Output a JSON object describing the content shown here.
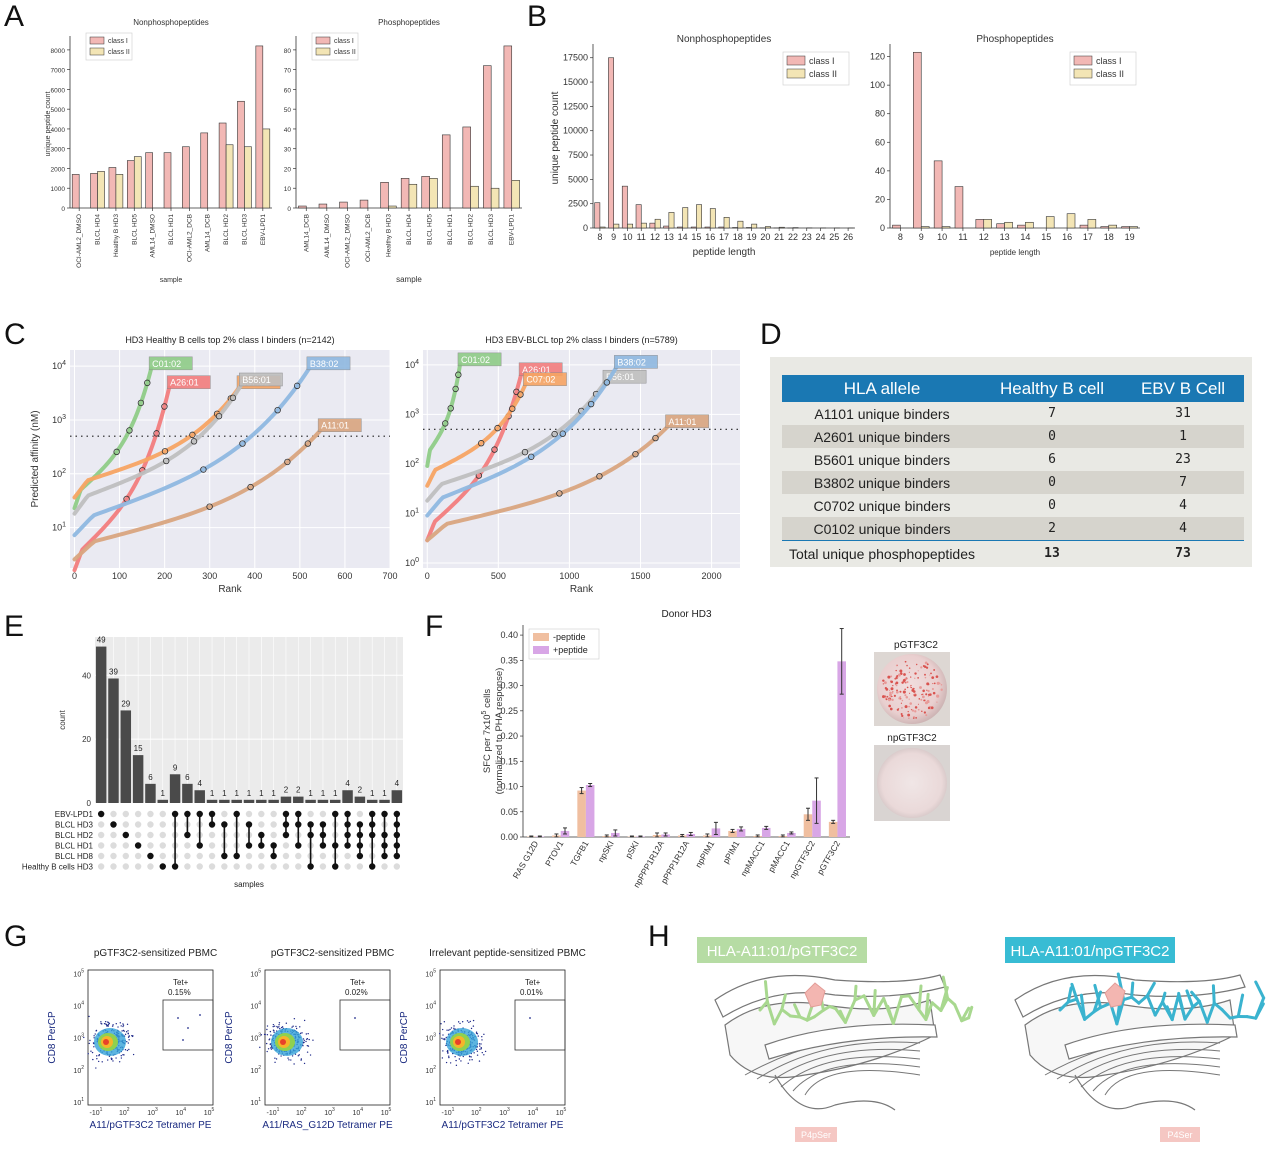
{
  "panels": [
    "A",
    "B",
    "C",
    "D",
    "E",
    "F",
    "G",
    "H"
  ],
  "colors": {
    "class_i": "#f2b8b5",
    "class_ii": "#f3e5b5",
    "bar_edge": "#333333",
    "c0102": "#8fcc87",
    "a2601": "#f27d7d",
    "c0702": "#f7a463",
    "b5601": "#bfbfbf",
    "b3802": "#8fb8e0",
    "a1101": "#d9a57f",
    "gridbg": "#eaeaf2",
    "upset_bar": "#4a4a4a",
    "neg": "#f0bfa0",
    "pos": "#d8a6e6",
    "table_header": "#1a78b3",
    "green_label": "#b6dca4",
    "cyan_label": "#38bcd4"
  },
  "chart_data": [
    {
      "id": "A1",
      "type": "bar",
      "title": "Nonphosphopeptides",
      "xlabel": "sample",
      "ylabel": "unique peptide count",
      "ylim": [
        0,
        8500
      ],
      "yticks": [
        0,
        1000,
        2000,
        3000,
        4000,
        5000,
        6000,
        7000,
        8000
      ],
      "categories": [
        "OCI-AML2_DMSO",
        "BLCL HD4",
        "Healthy B HD3",
        "BLCL HD5",
        "AML14_DMSO",
        "BLCL HD1",
        "OCI-AML2_DCB",
        "AML14_DCB",
        "BLCL HD2",
        "BLCL HD3",
        "EBV-LPD1"
      ],
      "series": [
        {
          "name": "class I",
          "values": [
            1700,
            1750,
            2050,
            2400,
            2800,
            2800,
            3100,
            3800,
            4300,
            5400,
            8200
          ]
        },
        {
          "name": "class II",
          "values": [
            null,
            1850,
            1700,
            2600,
            null,
            null,
            null,
            null,
            3200,
            3100,
            4000
          ]
        }
      ],
      "legend": "top-left"
    },
    {
      "id": "A2",
      "type": "bar",
      "title": "Phosphopeptides",
      "xlabel": "sample",
      "ylabel": "",
      "ylim": [
        0,
        85
      ],
      "yticks": [
        0,
        10,
        20,
        30,
        40,
        50,
        60,
        70,
        80
      ],
      "categories": [
        "AML14_DCB",
        "AML14_DMSO",
        "OCI-AML2_DMSO",
        "OCI-AML2_DCB",
        "Healthy B HD3",
        "BLCL HD4",
        "BLCL HD5",
        "BLCL HD1",
        "BLCL HD2",
        "BLCL HD3",
        "EBV-LPD1"
      ],
      "series": [
        {
          "name": "class I",
          "values": [
            1,
            2,
            3,
            4,
            13,
            15,
            16,
            37,
            41,
            72,
            82
          ]
        },
        {
          "name": "class II",
          "values": [
            null,
            null,
            null,
            null,
            1,
            12,
            15,
            null,
            11,
            10,
            14
          ]
        }
      ],
      "legend": "top-left"
    },
    {
      "id": "B1",
      "type": "bar",
      "title": "Nonphosphopeptides",
      "xlabel": "peptide length",
      "ylabel": "unique peptide count",
      "ylim": [
        0,
        18500
      ],
      "yticks": [
        0,
        2500,
        5000,
        7500,
        10000,
        12500,
        15000,
        17500
      ],
      "categories": [
        "8",
        "9",
        "10",
        "11",
        "12",
        "13",
        "14",
        "15",
        "16",
        "17",
        "18",
        "19",
        "20",
        "21",
        "22",
        "23",
        "24",
        "25",
        "26"
      ],
      "series": [
        {
          "name": "class I",
          "values": [
            2600,
            17500,
            4300,
            2400,
            500,
            200,
            100,
            100,
            100,
            100,
            50,
            50,
            20,
            10,
            5,
            0,
            0,
            0,
            0
          ]
        },
        {
          "name": "class II",
          "values": [
            100,
            400,
            400,
            500,
            900,
            1600,
            2100,
            2400,
            2000,
            1100,
            700,
            400,
            150,
            80,
            40,
            20,
            10,
            5,
            5
          ]
        }
      ],
      "legend": "top-right"
    },
    {
      "id": "B2",
      "type": "bar",
      "title": "Phosphopeptides",
      "xlabel": "peptide length",
      "ylabel": "",
      "ylim": [
        0,
        126
      ],
      "yticks": [
        0,
        20,
        40,
        60,
        80,
        100,
        120
      ],
      "categories": [
        "8",
        "9",
        "10",
        "11",
        "12",
        "13",
        "14",
        "15",
        "16",
        "17",
        "18",
        "19"
      ],
      "series": [
        {
          "name": "class I",
          "values": [
            2,
            123,
            47,
            29,
            6,
            3,
            2,
            0,
            0,
            2,
            1,
            1
          ]
        },
        {
          "name": "class II",
          "values": [
            0,
            1,
            1,
            0,
            6,
            4,
            4,
            8,
            10,
            6,
            2,
            1
          ]
        }
      ],
      "legend": "top-right"
    },
    {
      "id": "C1",
      "type": "scatter",
      "title": "HD3 Healthy B cells top 2% class I binders (n=2142)",
      "xlabel": "Rank",
      "ylabel": "Predicted affinity (nM)",
      "xlim": [
        -10,
        700
      ],
      "ylim_log": [
        0.25,
        4.3
      ],
      "xticks": [
        0,
        100,
        200,
        300,
        400,
        500,
        600,
        700
      ],
      "yticks": [
        "10^1",
        "10^2",
        "10^3",
        "10^4"
      ],
      "threshold_nM": 500,
      "series": [
        {
          "name": "C01:02",
          "n": 170,
          "start": 1.6,
          "end": 3.95
        },
        {
          "name": "A26:01",
          "n": 210,
          "start": 0.45,
          "end": 3.6
        },
        {
          "name": "C07:02",
          "n": 365,
          "start": 1.8,
          "end": 3.6
        },
        {
          "name": "B56:01",
          "n": 370,
          "start": 1.5,
          "end": 3.65
        },
        {
          "name": "B38:02",
          "n": 520,
          "start": 1.1,
          "end": 3.95
        },
        {
          "name": "A11:01",
          "n": 545,
          "start": 0.65,
          "end": 2.8
        }
      ]
    },
    {
      "id": "C2",
      "type": "scatter",
      "title": "HD3 EBV-BLCL top 2% class I binders (n=5789)",
      "xlabel": "Rank",
      "ylabel": "",
      "xlim": [
        -30,
        2200
      ],
      "ylim_log": [
        -0.1,
        4.3
      ],
      "xticks": [
        0,
        500,
        1000,
        1500,
        2000
      ],
      "yticks": [
        "10^0",
        "10^1",
        "10^2",
        "10^3",
        "10^4"
      ],
      "threshold_nM": 500,
      "series": [
        {
          "name": "C01:02",
          "n": 230,
          "start": 2.2,
          "end": 4.0
        },
        {
          "name": "A26:01",
          "n": 660,
          "start": 0.7,
          "end": 3.8
        },
        {
          "name": "C07:02",
          "n": 690,
          "start": 1.8,
          "end": 3.6
        },
        {
          "name": "B56:01",
          "n": 1250,
          "start": 1.5,
          "end": 3.65
        },
        {
          "name": "B38:02",
          "n": 1330,
          "start": 1.2,
          "end": 3.95
        },
        {
          "name": "A11:01",
          "n": 1690,
          "start": 0.7,
          "end": 2.75
        }
      ]
    },
    {
      "id": "E",
      "type": "bar",
      "title": "",
      "xlabel": "samples",
      "ylabel": "count",
      "ylim": [
        0,
        52
      ],
      "yticks": [
        0,
        20,
        40
      ],
      "values": [
        49,
        39,
        29,
        15,
        6,
        1,
        9,
        6,
        4,
        1,
        1,
        1,
        1,
        1,
        1,
        2,
        2,
        1,
        1,
        1,
        4,
        2,
        1,
        1,
        4
      ],
      "set_names": [
        "EBV-LPD1",
        "BLCL HD3",
        "BLCL HD2",
        "BLCL HD1",
        "BLCL HD8",
        "Healthy B cells HD3"
      ],
      "membership": [
        [
          0
        ],
        [
          1
        ],
        [
          2
        ],
        [
          3
        ],
        [
          4
        ],
        [
          5
        ],
        [
          0,
          5
        ],
        [
          0,
          2
        ],
        [
          0,
          3
        ],
        [
          0,
          1
        ],
        [
          1,
          4
        ],
        [
          0,
          4
        ],
        [
          1,
          3
        ],
        [
          2,
          3
        ],
        [
          3,
          4
        ],
        [
          0,
          1,
          2
        ],
        [
          0,
          1,
          3
        ],
        [
          1,
          2,
          5
        ],
        [
          1,
          2,
          3
        ],
        [
          0,
          3,
          5
        ],
        [
          0,
          1,
          2,
          3
        ],
        [
          1,
          2,
          3,
          4
        ],
        [
          0,
          1,
          2,
          5
        ],
        [
          0,
          2,
          3,
          4
        ],
        [
          0,
          1,
          2,
          3,
          4
        ]
      ]
    },
    {
      "id": "F",
      "type": "bar",
      "title": "Donor HD3",
      "xlabel": "",
      "ylabel": "SFC per 7x10^5 cells (normalized to PHA response)",
      "ylim": [
        0,
        0.42
      ],
      "yticks": [
        "0.00",
        "0.05",
        "0.10",
        "0.15",
        "0.20",
        "0.25",
        "0.30",
        "0.35",
        "0.40"
      ],
      "categories": [
        "RAS G12D",
        "PTOV1",
        "TGFB1",
        "npSKI",
        "pSKI",
        "npPPP1R12A",
        "pPPP1R12A",
        "npPIM1",
        "pPIM1",
        "npMACC1",
        "pMACC1",
        "npGTF3C2",
        "pGTF3C2"
      ],
      "series": [
        {
          "name": "-peptide",
          "values": [
            0.001,
            0.003,
            0.092,
            0.002,
            0.001,
            0.004,
            0.003,
            0.003,
            0.012,
            0.002,
            0.002,
            0.045,
            0.03
          ],
          "err": [
            0.001,
            0.003,
            0.006,
            0.002,
            0.001,
            0.004,
            0.002,
            0.003,
            0.003,
            0.002,
            0.002,
            0.012,
            0.003
          ]
        },
        {
          "name": "+peptide",
          "values": [
            0.001,
            0.012,
            0.103,
            0.008,
            0.001,
            0.005,
            0.006,
            0.017,
            0.016,
            0.018,
            0.008,
            0.072,
            0.348
          ],
          "err": [
            0.001,
            0.006,
            0.003,
            0.006,
            0.001,
            0.003,
            0.003,
            0.012,
            0.004,
            0.003,
            0.002,
            0.045,
            0.065
          ]
        }
      ],
      "legend": "top-left"
    }
  ],
  "table_d": {
    "headers": [
      "HLA allele",
      "Healthy B cell",
      "EBV B Cell"
    ],
    "rows": [
      [
        "A1101 unique binders",
        "7",
        "31"
      ],
      [
        "A2601 unique binders",
        "0",
        "1"
      ],
      [
        "B5601 unique binders",
        "6",
        "23"
      ],
      [
        "B3802 unique binders",
        "0",
        "7"
      ],
      [
        "C0702 unique binders",
        "0",
        "4"
      ],
      [
        "C0102 unique binders",
        "2",
        "4"
      ]
    ],
    "total": [
      "Total unique phosphopeptides",
      "13",
      "73"
    ]
  },
  "panel_f_images": {
    "top": "pGTF3C2",
    "bottom": "npGTF3C2"
  },
  "panel_g": [
    {
      "title": "pGTF3C2-sensitized PBMC",
      "xlabel": "A11/pGTF3C2 Tetramer PE",
      "ylabel": "CD8 PerCP",
      "gate": "Tet+",
      "pct": "0.15%"
    },
    {
      "title": "pGTF3C2-sensitized PBMC",
      "xlabel": "A11/RAS_G12D Tetramer PE",
      "ylabel": "CD8 PerCP",
      "gate": "Tet+",
      "pct": "0.02%"
    },
    {
      "title": "Irrelevant peptide-sensitized PBMC",
      "xlabel": "A11/pGTF3C2 Tetramer PE",
      "ylabel": "CD8 PerCP",
      "gate": "Tet+",
      "pct": "0.01%"
    }
  ],
  "panel_g_ticks": {
    "x": [
      "-10^1",
      "10^2",
      "10^3",
      "10^4",
      "10^5"
    ],
    "y": [
      "10^1",
      "10^2",
      "10^3",
      "10^4",
      "10^5"
    ]
  },
  "panel_h": {
    "left_label": "HLA-A11:01/pGTF3C2",
    "right_label": "HLA-A11:01/npGTF3C2",
    "left_tag": "P4pSer",
    "right_tag": "P4Ser"
  }
}
